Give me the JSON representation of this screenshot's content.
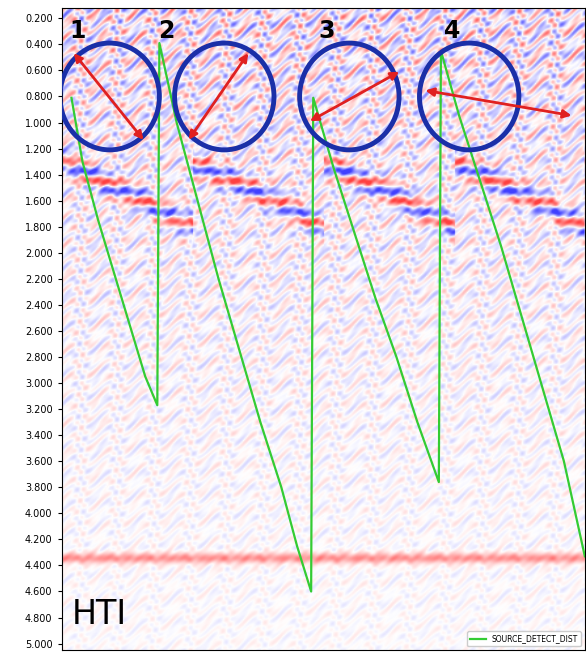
{
  "chart_data": {
    "type": "line",
    "annotations": [
      "1",
      "2",
      "3",
      "4",
      "HTI"
    ],
    "xlim": [
      0,
      100
    ],
    "ylim": [
      5.05,
      0.12
    ],
    "yticks": [
      {
        "value": 0.2,
        "label": "0.200"
      },
      {
        "value": 0.4,
        "label": "0.400"
      },
      {
        "value": 0.6,
        "label": "0.600"
      },
      {
        "value": 0.8,
        "label": "0.800"
      },
      {
        "value": 1.0,
        "label": "1.000"
      },
      {
        "value": 1.2,
        "label": "1.200"
      },
      {
        "value": 1.4,
        "label": "1.400"
      },
      {
        "value": 1.6,
        "label": "1.600"
      },
      {
        "value": 1.8,
        "label": "1.800"
      },
      {
        "value": 2.0,
        "label": "2.000"
      },
      {
        "value": 2.2,
        "label": "2.200"
      },
      {
        "value": 2.4,
        "label": "2.400"
      },
      {
        "value": 2.6,
        "label": "2.600"
      },
      {
        "value": 2.8,
        "label": "2.800"
      },
      {
        "value": 3.0,
        "label": "3.000"
      },
      {
        "value": 3.2,
        "label": "3.200"
      },
      {
        "value": 3.4,
        "label": "3.400"
      },
      {
        "value": 3.6,
        "label": "3.600"
      },
      {
        "value": 3.8,
        "label": "3.800"
      },
      {
        "value": 4.0,
        "label": "4.000"
      },
      {
        "value": 4.2,
        "label": "4.200"
      },
      {
        "value": 4.4,
        "label": "4.400"
      },
      {
        "value": 4.6,
        "label": "4.600"
      },
      {
        "value": 4.8,
        "label": "4.800"
      },
      {
        "value": 5.0,
        "label": "5.000"
      }
    ],
    "tick_labels": "y",
    "grid": false,
    "legend": "lower right",
    "series": [
      {
        "name": "SOURCE_DETECT_DIST",
        "color": "#33cc33",
        "line_style": "solid",
        "x": [
          1.9,
          4,
          7,
          10,
          13,
          16,
          18.3,
          18.7,
          22,
          26,
          30,
          34,
          38,
          42,
          45,
          47.7,
          48.1,
          52,
          56,
          60,
          64,
          68,
          72.1,
          72.5,
          76,
          80,
          84,
          88,
          92,
          96,
          100
        ],
        "values": [
          0.81,
          1.3,
          1.75,
          2.15,
          2.55,
          2.95,
          3.17,
          0.39,
          1.0,
          1.6,
          2.2,
          2.75,
          3.3,
          3.8,
          4.25,
          4.6,
          0.81,
          1.35,
          1.85,
          2.35,
          2.8,
          3.3,
          3.76,
          0.45,
          0.95,
          1.45,
          1.95,
          2.5,
          3.05,
          3.6,
          4.33
        ]
      }
    ]
  }
}
